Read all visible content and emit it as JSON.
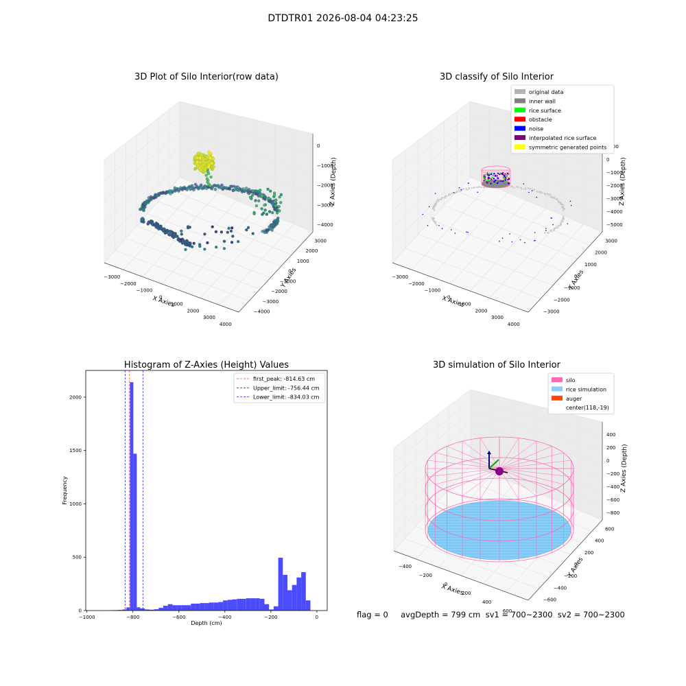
{
  "figure": {
    "suptitle": "DTDTR01 2026-08-04 04:23:25",
    "footer": "flag = 0     avgDepth = 799 cm  sv1 = 700~2300  sv2 = 700~2300"
  },
  "colors": {
    "hist_bar": "#4c4cff",
    "first_peak": "#ff3b3b",
    "limit": "#2020ff",
    "silo": "#ff69b4",
    "rice": "#87cefa",
    "auger": "#ff4500",
    "grid": "#e6e6e6",
    "pane_left": "#f2f2f2",
    "pane_right": "#ebebeb",
    "pane_floor": "#f7f7f7",
    "axis_line": "#444444"
  },
  "chart_data": [
    {
      "type": "scatter",
      "projection": "3d",
      "title": "3D Plot of Silo Interior(row data)",
      "xlabel": "X Axies",
      "ylabel": "Y Axies",
      "zlabel": "Z Axies (Depth)",
      "xticks": [
        "−3000",
        "−2000",
        "−1000",
        "0",
        "1000",
        "2000",
        "3000",
        "4000"
      ],
      "yticks": [
        "−4000",
        "−3000",
        "−2000",
        "−1000",
        "0",
        "1000",
        "2000",
        "3000"
      ],
      "zticks": [
        "−4000",
        "−3000",
        "−2000",
        "−1000",
        "0"
      ],
      "colormap": "viridis",
      "description_points": "ring of wall points around depth −3000 to −4000, dense rice cluster near depth −700 at center"
    },
    {
      "type": "scatter",
      "projection": "3d",
      "title": "3D classify of Silo Interior",
      "xlabel": "X Axies",
      "ylabel": "Y Axies",
      "zlabel": "Z Axies (Depth)",
      "xticks": [
        "−3000",
        "−2000",
        "−1000",
        "0",
        "1000",
        "2000",
        "3000",
        "4000"
      ],
      "yticks": [
        "−3000",
        "−2000",
        "−1000",
        "0",
        "1000",
        "2000",
        "3000"
      ],
      "zticks": [
        "−5000",
        "−4000",
        "−3000",
        "−2000",
        "−1000",
        "0",
        "1000"
      ],
      "legend": [
        {
          "label": "original data",
          "color": "#b3b3b3"
        },
        {
          "label": "inner wall",
          "color": "#808080"
        },
        {
          "label": "rice surface",
          "color": "#00ff00"
        },
        {
          "label": "obstacle",
          "color": "#ff0000"
        },
        {
          "label": "noise",
          "color": "#0000ff"
        },
        {
          "label": "interpolated rice surface",
          "color": "#800080"
        },
        {
          "label": "symmetric generated points",
          "color": "#ffff00"
        }
      ],
      "legend_loc": "upper right"
    },
    {
      "type": "bar",
      "title": "Histogram of Z-Axies (Height) Values",
      "xlabel": "Depth (cm)",
      "ylabel": "Frequency",
      "xlim": [
        -1005,
        45
      ],
      "ylim": [
        0,
        2250
      ],
      "xticks": [
        -1000,
        -800,
        -600,
        -400,
        -200,
        0
      ],
      "yticks": [
        0,
        500,
        1000,
        1500,
        2000
      ],
      "bins": [
        {
          "left": -905,
          "right": -885,
          "value": 3
        },
        {
          "left": -885,
          "right": -865,
          "value": 4
        },
        {
          "left": -865,
          "right": -845,
          "value": 6
        },
        {
          "left": -845,
          "right": -828,
          "value": 10
        },
        {
          "left": -828,
          "right": -813,
          "value": 30
        },
        {
          "left": -813,
          "right": -798,
          "value": 2140
        },
        {
          "left": -798,
          "right": -783,
          "value": 1470
        },
        {
          "left": -783,
          "right": -768,
          "value": 30
        },
        {
          "left": -768,
          "right": -748,
          "value": 20
        },
        {
          "left": -748,
          "right": -728,
          "value": 10
        },
        {
          "left": -728,
          "right": -708,
          "value": 8
        },
        {
          "left": -708,
          "right": -688,
          "value": 12
        },
        {
          "left": -688,
          "right": -668,
          "value": 25
        },
        {
          "left": -668,
          "right": -648,
          "value": 45
        },
        {
          "left": -648,
          "right": -628,
          "value": 60
        },
        {
          "left": -628,
          "right": -608,
          "value": 50
        },
        {
          "left": -608,
          "right": -588,
          "value": 50
        },
        {
          "left": -588,
          "right": -568,
          "value": 50
        },
        {
          "left": -568,
          "right": -548,
          "value": 50
        },
        {
          "left": -548,
          "right": -528,
          "value": 65
        },
        {
          "left": -528,
          "right": -508,
          "value": 65
        },
        {
          "left": -508,
          "right": -488,
          "value": 70
        },
        {
          "left": -488,
          "right": -468,
          "value": 70
        },
        {
          "left": -468,
          "right": -448,
          "value": 75
        },
        {
          "left": -448,
          "right": -428,
          "value": 75
        },
        {
          "left": -428,
          "right": -408,
          "value": 80
        },
        {
          "left": -408,
          "right": -388,
          "value": 95
        },
        {
          "left": -388,
          "right": -368,
          "value": 100
        },
        {
          "left": -368,
          "right": -348,
          "value": 105
        },
        {
          "left": -348,
          "right": -328,
          "value": 110
        },
        {
          "left": -328,
          "right": -308,
          "value": 110
        },
        {
          "left": -308,
          "right": -288,
          "value": 115
        },
        {
          "left": -288,
          "right": -268,
          "value": 115
        },
        {
          "left": -268,
          "right": -248,
          "value": 115
        },
        {
          "left": -248,
          "right": -228,
          "value": 110
        },
        {
          "left": -228,
          "right": -208,
          "value": 60
        },
        {
          "left": -208,
          "right": -188,
          "value": 10
        },
        {
          "left": -188,
          "right": -168,
          "value": 40
        },
        {
          "left": -168,
          "right": -148,
          "value": 495
        },
        {
          "left": -148,
          "right": -128,
          "value": 335
        },
        {
          "left": -128,
          "right": -108,
          "value": 190
        },
        {
          "left": -108,
          "right": -88,
          "value": 240
        },
        {
          "left": -88,
          "right": -68,
          "value": 310
        },
        {
          "left": -68,
          "right": -48,
          "value": 360
        },
        {
          "left": -48,
          "right": -28,
          "value": 95
        },
        {
          "left": -28,
          "right": -8,
          "value": 0
        }
      ],
      "vlines": [
        {
          "x": -814.63,
          "label": "first_peak: -814.63 cm",
          "color": "#ff3b3b"
        },
        {
          "x": -756.44,
          "label": "Upper_limit: -756.44 cm",
          "color": "#2020ff"
        },
        {
          "x": -834.03,
          "label": "Lower_limit: -834.03 cm",
          "color": "#2020ff"
        }
      ],
      "legend_loc": "upper right"
    },
    {
      "type": "surface",
      "projection": "3d",
      "title": "3D simulation of Silo Interior",
      "xlabel": "X Axies",
      "ylabel": "Y Axies",
      "zlabel": "Z Axies (Depth)",
      "xticks": [
        "−400",
        "−200",
        "0",
        "200",
        "400",
        "600"
      ],
      "yticks": [
        "−600",
        "−400",
        "−200",
        "0",
        "200",
        "400",
        "600"
      ],
      "zticks": [
        "−800",
        "−600",
        "−400",
        "−200",
        "0",
        "200",
        "400"
      ],
      "legend": [
        {
          "label": "silo",
          "color": "#ff69b4"
        },
        {
          "label": "rice simulation",
          "color": "#87cefa"
        },
        {
          "label": "auger",
          "color": "#ff4500"
        },
        {
          "label": "center(118,-19)",
          "color": ""
        }
      ],
      "legend_loc": "upper right"
    }
  ]
}
